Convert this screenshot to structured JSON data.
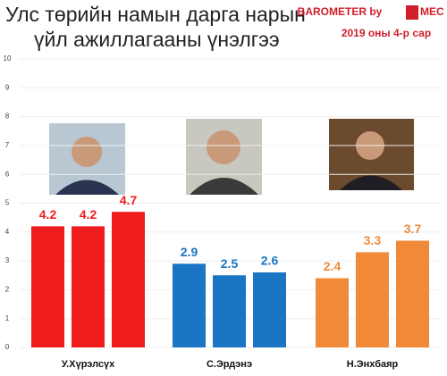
{
  "chart_data": {
    "type": "bar",
    "title": [
      "Улс төрийн намын дарга нарын",
      "үйл ажиллагааны үнэлгээ"
    ],
    "brand": "BAROMETER by",
    "brand_mark": "MEC",
    "subtitle": "2019 оны 4-р сар",
    "groups": [
      {
        "name": "У.Хүрэлсүх",
        "color": "#ee1c1c",
        "values": [
          4.2,
          4.2,
          4.7
        ]
      },
      {
        "name": "С.Эрдэнэ",
        "color": "#1a75c4",
        "values": [
          2.9,
          2.5,
          2.6
        ]
      },
      {
        "name": "Н.Энхбаяр",
        "color": "#f08a38",
        "values": [
          2.4,
          3.3,
          3.7
        ]
      }
    ],
    "ylim": [
      0,
      10
    ],
    "yticks": [
      0,
      1,
      2,
      3,
      4,
      5,
      6,
      7,
      8,
      9,
      10
    ],
    "grid": true
  }
}
